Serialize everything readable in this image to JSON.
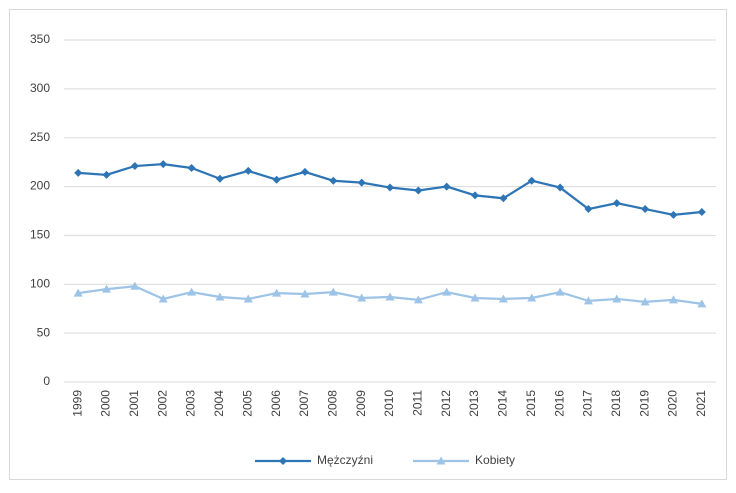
{
  "chart_data": {
    "type": "line",
    "categories": [
      "1999",
      "2000",
      "2001",
      "2002",
      "2003",
      "2004",
      "2005",
      "2006",
      "2007",
      "2008",
      "2009",
      "2010",
      "2011",
      "2012",
      "2013",
      "2014",
      "2015",
      "2016",
      "2017",
      "2018",
      "2019",
      "2020",
      "2021"
    ],
    "series": [
      {
        "name": "Mężczyźni",
        "color": "#2e75b6",
        "marker": "diamond",
        "values": [
          214,
          212,
          221,
          223,
          219,
          208,
          216,
          207,
          215,
          206,
          204,
          199,
          196,
          200,
          191,
          188,
          206,
          199,
          177,
          183,
          177,
          171,
          174
        ]
      },
      {
        "name": "Kobiety",
        "color": "#9dc3e6",
        "marker": "triangle",
        "values": [
          91,
          95,
          98,
          85,
          92,
          87,
          85,
          91,
          90,
          92,
          86,
          87,
          84,
          92,
          86,
          85,
          86,
          92,
          83,
          85,
          82,
          84,
          80
        ]
      }
    ],
    "ylim": [
      0,
      350
    ],
    "yticks": [
      0,
      50,
      100,
      150,
      200,
      250,
      300,
      350
    ],
    "grid": true,
    "legend": "bottom"
  }
}
